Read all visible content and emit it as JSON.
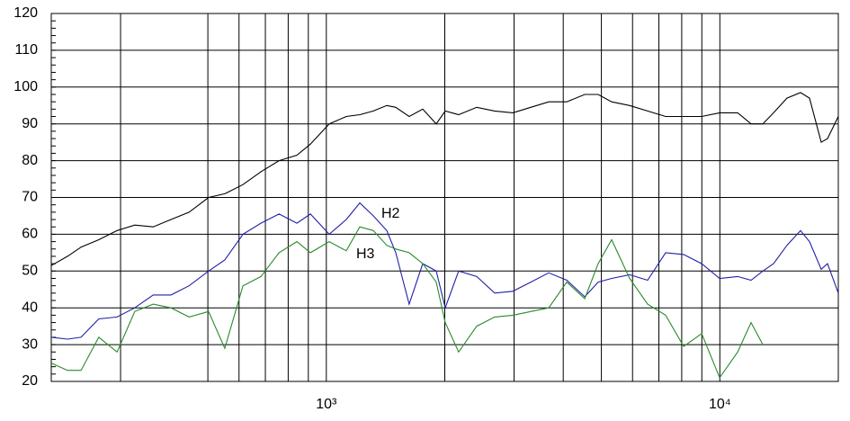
{
  "chart_data": {
    "type": "line",
    "x": [
      200,
      220,
      238,
      264,
      294,
      326,
      363,
      403,
      448,
      502,
      552,
      614,
      682,
      758,
      842,
      911,
      1017,
      1124,
      1216,
      1316,
      1424,
      1501,
      1624,
      1758,
      1902,
      2005,
      2169,
      2411,
      2679,
      2977,
      3308,
      3675,
      4083,
      4537,
      4907,
      5309,
      5899,
      6554,
      7282,
      8092,
      8990,
      9989,
      11100,
      12005,
      12860,
      13690,
      14810,
      16030,
      16900,
      18100,
      18780,
      20000
    ],
    "series": [
      {
        "color": "#000000",
        "values": [
          51.5,
          54,
          56.5,
          58.5,
          61,
          62.5,
          62,
          64,
          66,
          70,
          71,
          73.5,
          77,
          80,
          81.5,
          84.5,
          90,
          92,
          92.5,
          93.5,
          95,
          94.5,
          92,
          94,
          90,
          93.5,
          92.5,
          94.5,
          93.5,
          93,
          94.5,
          96,
          96,
          98,
          98,
          96,
          95,
          93.5,
          92,
          92,
          92,
          93,
          93,
          90,
          90,
          93,
          97,
          98.5,
          97,
          85,
          86,
          92
        ]
      },
      {
        "name": "H2",
        "color": "#1f1fa8",
        "values": [
          32,
          31.5,
          32,
          37,
          37.5,
          40,
          43.5,
          43.5,
          46,
          50,
          53,
          60,
          63,
          65.5,
          63,
          65.5,
          60,
          64,
          68.5,
          65,
          61,
          55,
          41,
          52,
          50,
          40,
          50,
          48.5,
          44,
          44.5,
          47,
          49.5,
          47.5,
          43,
          47,
          48,
          49,
          47.5,
          55,
          54.5,
          52,
          48,
          48.5,
          47.5,
          50,
          52,
          57,
          61,
          58,
          50.5,
          52,
          44
        ]
      },
      {
        "name": "H3",
        "color": "#2a8a2a",
        "values": [
          25,
          23,
          23,
          32,
          28,
          39,
          41,
          40,
          37.5,
          39,
          29,
          46,
          48.5,
          55,
          58,
          55,
          58,
          55.5,
          62,
          61,
          57,
          56,
          55,
          52,
          47,
          36,
          28,
          35,
          37.5,
          38,
          39,
          40,
          47,
          42.5,
          52,
          58.5,
          48,
          41,
          38,
          29.5,
          33,
          21,
          28,
          36,
          30,
          null,
          null,
          null,
          null,
          null,
          null,
          null
        ]
      }
    ],
    "xlim": [
      200,
      20000
    ],
    "xscale": "log",
    "xticks": [
      {
        "value": 1000,
        "label": "10³"
      },
      {
        "value": 10000,
        "label": "10⁴"
      }
    ],
    "xgrid": [
      300,
      500,
      600,
      700,
      800,
      900,
      1000,
      2000,
      3000,
      4000,
      5000,
      6000,
      7000,
      8000,
      9000,
      10000
    ],
    "ylim": [
      20,
      120
    ],
    "yticks": [
      20,
      30,
      40,
      50,
      60,
      70,
      80,
      90,
      100,
      110,
      120
    ],
    "yminor_step": 2,
    "grid": true
  }
}
